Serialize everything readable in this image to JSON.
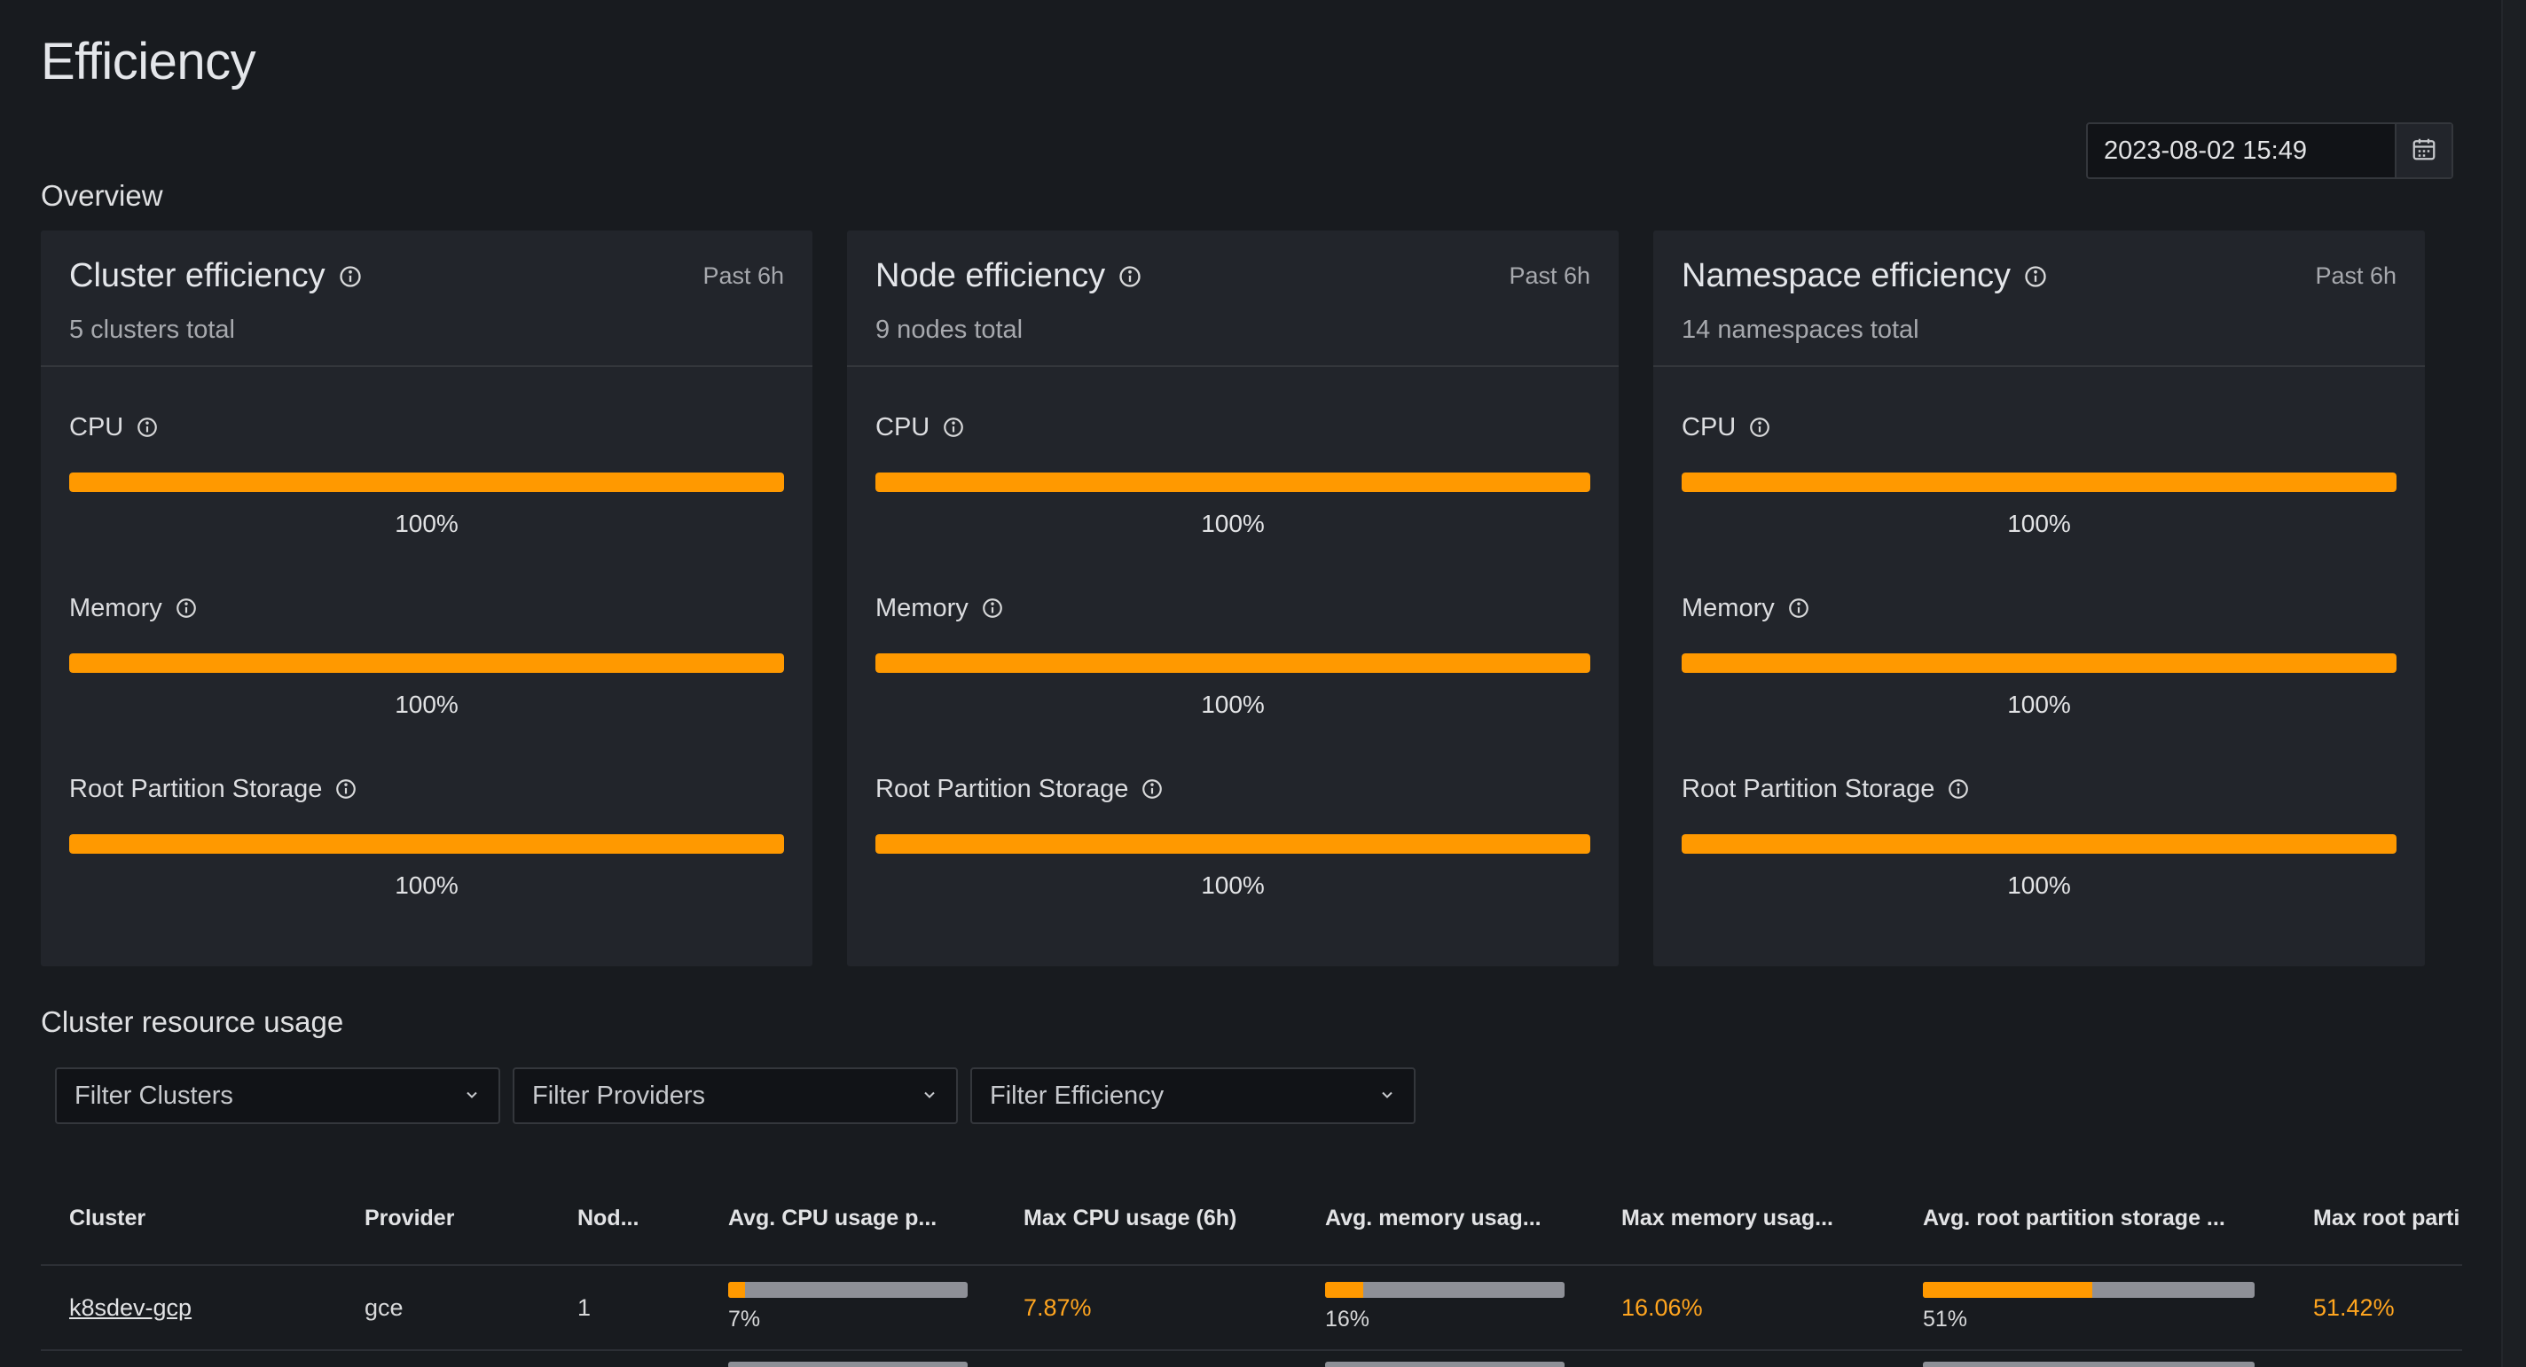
{
  "page": {
    "title": "Efficiency"
  },
  "date_picker": {
    "value": "2023-08-02 15:49",
    "icon": "calendar-icon"
  },
  "sections": {
    "overview": "Overview",
    "resource_usage": "Cluster resource usage"
  },
  "cards": [
    {
      "title": "Cluster efficiency",
      "range": "Past 6h",
      "subtitle": "5 clusters total",
      "metrics": [
        {
          "label": "CPU",
          "value": "100%",
          "fraction": 1.0
        },
        {
          "label": "Memory",
          "value": "100%",
          "fraction": 1.0
        },
        {
          "label": "Root Partition Storage",
          "value": "100%",
          "fraction": 1.0
        }
      ]
    },
    {
      "title": "Node efficiency",
      "range": "Past 6h",
      "subtitle": "9 nodes total",
      "metrics": [
        {
          "label": "CPU",
          "value": "100%",
          "fraction": 1.0
        },
        {
          "label": "Memory",
          "value": "100%",
          "fraction": 1.0
        },
        {
          "label": "Root Partition Storage",
          "value": "100%",
          "fraction": 1.0
        }
      ]
    },
    {
      "title": "Namespace efficiency",
      "range": "Past 6h",
      "subtitle": "14 namespaces total",
      "metrics": [
        {
          "label": "CPU",
          "value": "100%",
          "fraction": 1.0
        },
        {
          "label": "Memory",
          "value": "100%",
          "fraction": 1.0
        },
        {
          "label": "Root Partition Storage",
          "value": "100%",
          "fraction": 1.0
        }
      ]
    }
  ],
  "filters": [
    {
      "placeholder": "Filter Clusters"
    },
    {
      "placeholder": "Filter Providers"
    },
    {
      "placeholder": "Filter Efficiency"
    }
  ],
  "table": {
    "columns": [
      "Cluster",
      "Provider",
      "Nod...",
      "Avg. CPU usage p...",
      "Max CPU usage (6h)",
      "Avg. memory usag...",
      "Max memory usag...",
      "Avg. root partition storage ...",
      "Max root parti"
    ],
    "rows": [
      {
        "cluster": "k8sdev-gcp",
        "provider": "gce",
        "nodes": "1",
        "avg_cpu": "7%",
        "avg_cpu_fraction": 0.07,
        "max_cpu": "7.87%",
        "avg_mem": "16%",
        "avg_mem_fraction": 0.16,
        "max_mem": "16.06%",
        "avg_root": "51%",
        "avg_root_fraction": 0.51,
        "max_root": "51.42%"
      }
    ]
  },
  "colors": {
    "accent": "#ff9900",
    "highlight_text": "#ffa51f",
    "background": "#181b1f",
    "panel": "#22252b"
  }
}
